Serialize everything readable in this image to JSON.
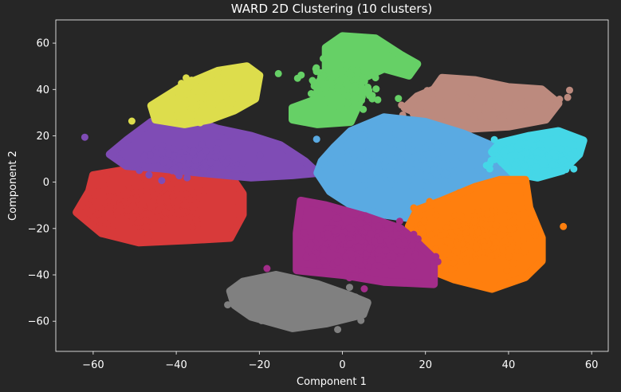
{
  "chart_data": {
    "type": "scatter",
    "title": "WARD 2D Clustering (10 clusters)",
    "xlabel": "Component 1",
    "ylabel": "Component 2",
    "xlim": [
      -69,
      64
    ],
    "ylim": [
      -73,
      70
    ],
    "xticks": [
      -60,
      -40,
      -20,
      0,
      20,
      40,
      60
    ],
    "yticks": [
      -60,
      -40,
      -20,
      0,
      20,
      40,
      60
    ],
    "xtick_labels": [
      "−60",
      "−40",
      "−20",
      "0",
      "20",
      "40",
      "60"
    ],
    "ytick_labels": [
      "−60",
      "−40",
      "−20",
      "0",
      "20",
      "40",
      "60"
    ],
    "grid": false,
    "legend": "none",
    "colors": {
      "background": "#262626",
      "axes": "#ffffff",
      "text": "#ffffff"
    },
    "clusters": [
      {
        "color": "#D83A3A",
        "center": [
          -46,
          -10
        ],
        "spread": [
          10,
          7
        ],
        "angle": 0,
        "n": 160,
        "vertices": [
          [
            -64,
            -13
          ],
          [
            -61,
            -4
          ],
          [
            -60,
            3
          ],
          [
            -50,
            6
          ],
          [
            -36,
            6
          ],
          [
            -27,
            3
          ],
          [
            -24,
            -5
          ],
          [
            -24,
            -14
          ],
          [
            -27,
            -24
          ],
          [
            -37,
            -25
          ],
          [
            -49,
            -26
          ],
          [
            -58,
            -22
          ]
        ]
      },
      {
        "color": "#7F4CB5",
        "center": [
          -36,
          10
        ],
        "spread": [
          9,
          5
        ],
        "angle": -10,
        "n": 130,
        "vertices": [
          [
            -56,
            12
          ],
          [
            -52,
            18
          ],
          [
            -46,
            26
          ],
          [
            -38,
            28
          ],
          [
            -30,
            23
          ],
          [
            -22,
            20
          ],
          [
            -15,
            16
          ],
          [
            -9,
            9
          ],
          [
            -6,
            4
          ],
          [
            -12,
            3
          ],
          [
            -22,
            2
          ],
          [
            -34,
            4
          ],
          [
            -44,
            6
          ],
          [
            -52,
            7
          ]
        ]
      },
      {
        "color": "#DDDD4C",
        "center": [
          -32,
          38
        ],
        "spread": [
          7,
          5
        ],
        "angle": 30,
        "n": 90,
        "vertices": [
          [
            -46,
            33
          ],
          [
            -38,
            42
          ],
          [
            -30,
            48
          ],
          [
            -23,
            50
          ],
          [
            -20,
            46
          ],
          [
            -21,
            36
          ],
          [
            -26,
            31
          ],
          [
            -32,
            27
          ],
          [
            -38,
            25
          ],
          [
            -45,
            27
          ]
        ]
      },
      {
        "color": "#66D066",
        "center": [
          0,
          42
        ],
        "spread": [
          6,
          7
        ],
        "angle": 60,
        "n": 100,
        "vertices": [
          [
            -12,
            27
          ],
          [
            -12,
            32
          ],
          [
            -6,
            36
          ],
          [
            -6,
            42
          ],
          [
            -4,
            48
          ],
          [
            -4,
            58
          ],
          [
            0,
            63
          ],
          [
            8,
            62
          ],
          [
            14,
            55
          ],
          [
            18,
            51
          ],
          [
            16,
            46
          ],
          [
            10,
            49
          ],
          [
            4,
            44
          ],
          [
            4,
            34
          ],
          [
            2,
            26
          ],
          [
            -6,
            25
          ]
        ]
      },
      {
        "color": "#BC8A7E",
        "center": [
          35,
          33
        ],
        "spread": [
          11,
          5
        ],
        "angle": 0,
        "n": 130,
        "vertices": [
          [
            15,
            32
          ],
          [
            18,
            37
          ],
          [
            22,
            40
          ],
          [
            24,
            45
          ],
          [
            32,
            44
          ],
          [
            40,
            41
          ],
          [
            48,
            40
          ],
          [
            52,
            34
          ],
          [
            49,
            27
          ],
          [
            40,
            24
          ],
          [
            30,
            23
          ],
          [
            22,
            27
          ]
        ]
      },
      {
        "color": "#5AAAE2",
        "center": [
          14,
          9
        ],
        "spread": [
          10,
          7
        ],
        "angle": -10,
        "n": 220,
        "vertices": [
          [
            -6,
            4
          ],
          [
            -3,
            -4
          ],
          [
            3,
            -11
          ],
          [
            10,
            -14
          ],
          [
            18,
            -16
          ],
          [
            24,
            -15
          ],
          [
            32,
            -10
          ],
          [
            37,
            -3
          ],
          [
            40,
            3
          ],
          [
            37,
            15
          ],
          [
            29,
            21
          ],
          [
            20,
            26
          ],
          [
            10,
            28
          ],
          [
            2,
            22
          ],
          [
            -2,
            15
          ],
          [
            -5,
            9
          ]
        ]
      },
      {
        "color": "#45D7E7",
        "center": [
          46,
          11
        ],
        "spread": [
          6,
          4
        ],
        "angle": 0,
        "n": 90,
        "vertices": [
          [
            36,
            13
          ],
          [
            38,
            17
          ],
          [
            45,
            20
          ],
          [
            52,
            22
          ],
          [
            58,
            18
          ],
          [
            57,
            12
          ],
          [
            53,
            5
          ],
          [
            47,
            2
          ],
          [
            41,
            4
          ]
        ]
      },
      {
        "color": "#FF7F0E",
        "center": [
          32,
          -23
        ],
        "spread": [
          9,
          8
        ],
        "angle": 30,
        "n": 180,
        "vertices": [
          [
            18,
            -12
          ],
          [
            24,
            -8
          ],
          [
            32,
            -2
          ],
          [
            38,
            1
          ],
          [
            44,
            1
          ],
          [
            45,
            -11
          ],
          [
            48,
            -24
          ],
          [
            48,
            -34
          ],
          [
            44,
            -41
          ],
          [
            36,
            -46
          ],
          [
            27,
            -42
          ],
          [
            20,
            -37
          ],
          [
            18,
            -30
          ],
          [
            16,
            -19
          ]
        ]
      },
      {
        "color": "#A32D8A",
        "center": [
          5,
          -26
        ],
        "spread": [
          8,
          7
        ],
        "angle": 0,
        "n": 200,
        "vertices": [
          [
            -10,
            -8
          ],
          [
            -11,
            -22
          ],
          [
            -11,
            -38
          ],
          [
            0,
            -40
          ],
          [
            10,
            -43
          ],
          [
            22,
            -44
          ],
          [
            22,
            -33
          ],
          [
            18,
            -26
          ],
          [
            14,
            -20
          ],
          [
            6,
            -15
          ],
          [
            -4,
            -10
          ]
        ]
      },
      {
        "color": "#808080",
        "center": [
          -9,
          -53
        ],
        "spread": [
          8,
          5
        ],
        "angle": -15,
        "n": 120,
        "vertices": [
          [
            -27,
            -47
          ],
          [
            -24,
            -43
          ],
          [
            -16,
            -40
          ],
          [
            -6,
            -44
          ],
          [
            2,
            -49
          ],
          [
            6,
            -52
          ],
          [
            5,
            -57
          ],
          [
            -4,
            -61
          ],
          [
            -12,
            -63
          ],
          [
            -22,
            -58
          ],
          [
            -26,
            -53
          ]
        ]
      }
    ]
  }
}
